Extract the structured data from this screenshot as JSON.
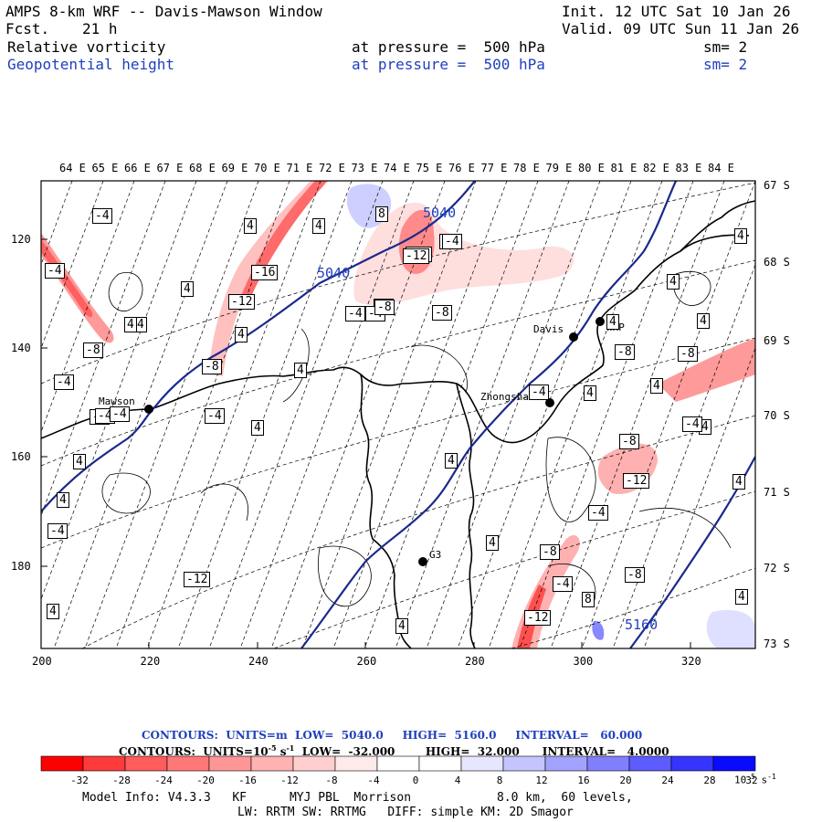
{
  "header": {
    "model_title": "AMPS 8-km WRF -- Davis-Mawson Window",
    "init": "Init. 12 UTC Sat 10 Jan 26",
    "fcst_label": "Fcst.",
    "fcst_value": "21 h",
    "valid": "Valid. 09 UTC Sun 11 Jan 26",
    "field1": "Relative vorticity",
    "field1_level": "at pressure =  500 hPa",
    "field1_sm": "sm= 2",
    "field2": "Geopotential height",
    "field2_level": "at pressure =  500 hPa",
    "field2_sm": "sm= 2"
  },
  "map": {
    "top_lon_labels": [
      "64 E",
      "65 E",
      "66 E",
      "67 E",
      "68 E",
      "69 E",
      "70 E",
      "71 E",
      "72 E",
      "73 E",
      "74 E",
      "75 E",
      "76 E",
      "77 E",
      "78 E",
      "79 E",
      "80 E",
      "81 E",
      "82 E",
      "83 E",
      "84 E"
    ],
    "right_lat_labels": [
      "67 S",
      "68 S",
      "69 S",
      "70 S",
      "71 S",
      "72 S",
      "73 S"
    ],
    "left_y_labels": [
      "120",
      "140",
      "160",
      "180"
    ],
    "bottom_x_labels": [
      "200",
      "220",
      "240",
      "260",
      "280",
      "300",
      "320"
    ],
    "stations": [
      "Mawson",
      "Davis",
      "WHP",
      "Zhongshan",
      "G3"
    ],
    "height_labels": [
      "5040",
      "5040",
      "5160"
    ],
    "vort_labels": [
      "-4",
      "4",
      "-4",
      "4",
      "-4",
      "4",
      "-12",
      "-16",
      "-12",
      "-8",
      "-8",
      "-4",
      "4",
      "4",
      "-4",
      "8",
      "4",
      "-12",
      "-4",
      "-8",
      "-4",
      "-8",
      "4",
      "4",
      "4",
      "4",
      "4",
      "-8",
      "-4",
      "4",
      "-12",
      "-8",
      "4",
      "4",
      "4",
      "4",
      "-8",
      "-4",
      "-8",
      "-4",
      "-12",
      "4",
      "4",
      "-8",
      "4",
      "-4",
      "4",
      "-12",
      "8",
      "4",
      "-4",
      "4",
      "-4",
      "-4",
      "4",
      "-4",
      "-8",
      "-4"
    ],
    "colors": {
      "height_contour": "#1a2a8c",
      "coast": "#000000",
      "neg_fill": "#e84848",
      "pos_fill": "#5a5af0"
    }
  },
  "legend": {
    "contour_line1": "CONTOURS:  UNITS=m  LOW=  5040.0     HIGH=  5160.0     INTERVAL=   60.000",
    "contour_line2": "CONTOURS:  UNITS=10",
    "contour_line2_exp": "-5",
    "contour_line2_unit": " s",
    "contour_line2_unitexp": "-1",
    "contour_line2_rest": "  LOW=  -32.000        HIGH=  32.000      INTERVAL=   4.0000",
    "colorbar_labels": [
      "-32",
      "-28",
      "-24",
      "-20",
      "-16",
      "-12",
      "-8",
      "-4",
      "0",
      "4",
      "8",
      "12",
      "16",
      "20",
      "24",
      "28",
      "32"
    ],
    "colorbar_unit": "10",
    "colorbar_unit_exp": "-5",
    "colorbar_unit_s": " s",
    "colorbar_unit_s_exp": "-1",
    "colorbar_colors": [
      "#ff0000",
      "#ff3a3a",
      "#ff5c5c",
      "#ff7878",
      "#ff9696",
      "#ffb2b2",
      "#ffcfcf",
      "#ffeaea",
      "#ffffff",
      "#ffffff",
      "#e6e6ff",
      "#c4c4ff",
      "#a2a2ff",
      "#8080ff",
      "#5c5cff",
      "#3535ff",
      "#0a0aff"
    ]
  },
  "footer": {
    "line1": "Model Info: V4.3.3   KF      MYJ PBL  Morrison            8.0 km,  60 levels,",
    "line2": "LW: RRTM SW: RRTMG   DIFF: simple KM: 2D Smagor"
  }
}
